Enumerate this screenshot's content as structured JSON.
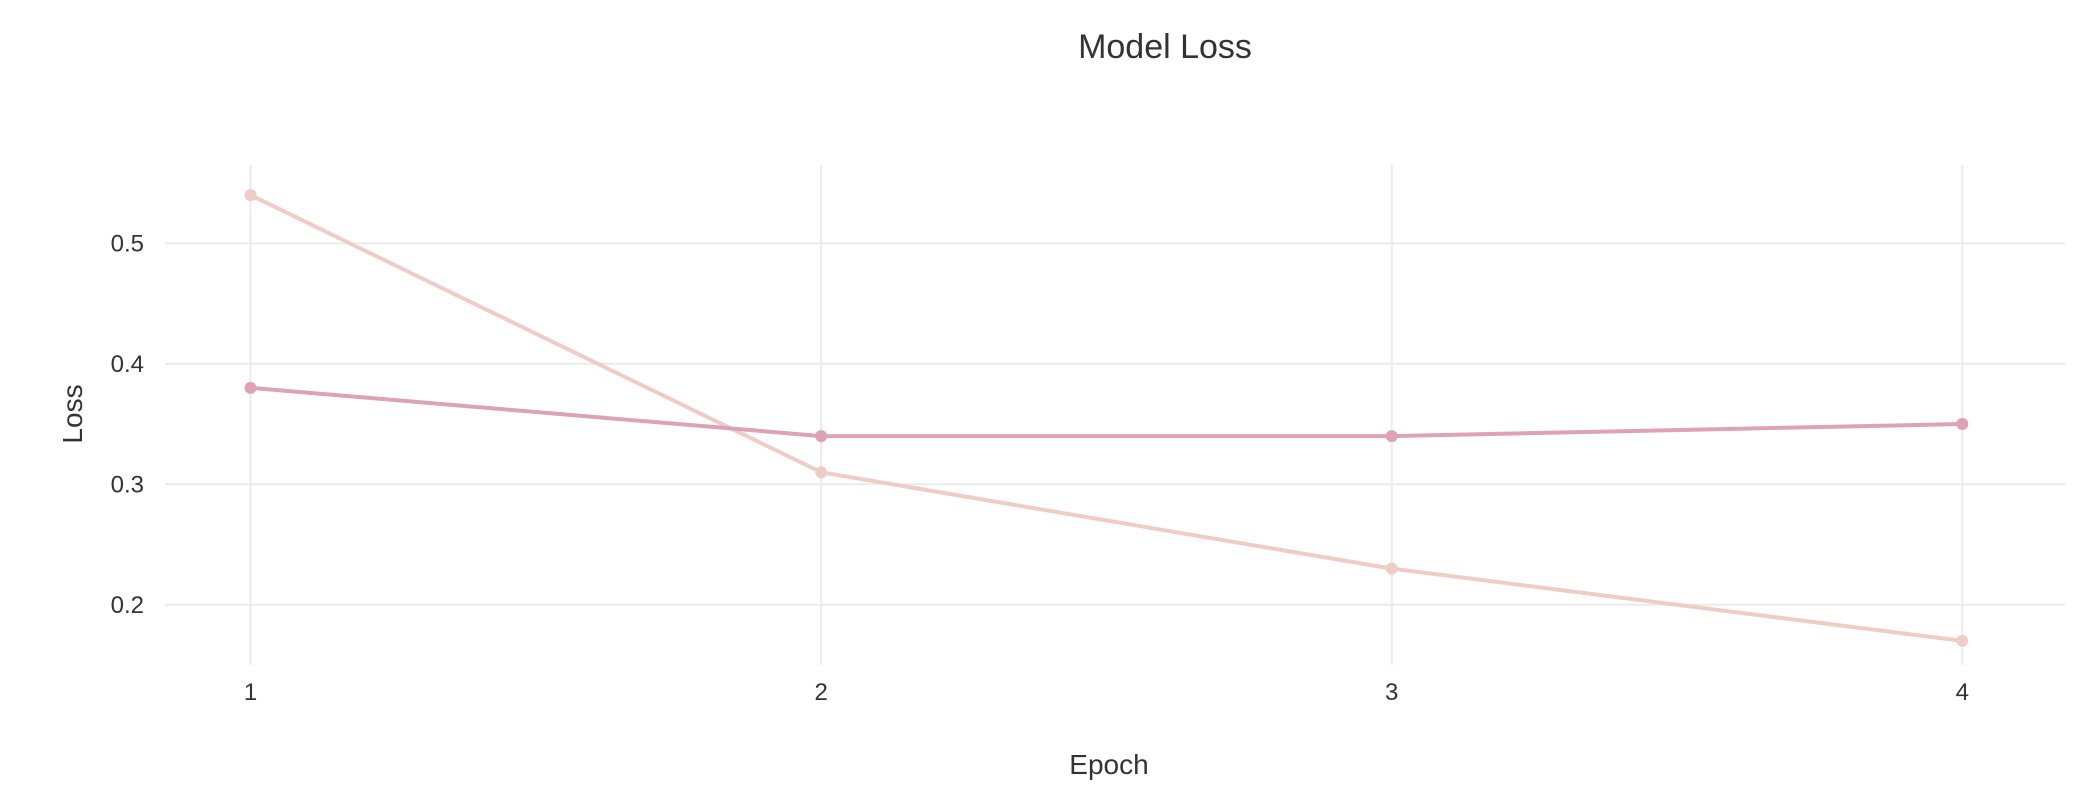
{
  "chart_data": {
    "type": "line",
    "title": "Model Loss",
    "xlabel": "Epoch",
    "ylabel": "Loss",
    "x": [
      1,
      2,
      3,
      4
    ],
    "xticks": [
      "1",
      "2",
      "3",
      "4"
    ],
    "yticks": [
      0.2,
      0.3,
      0.4,
      0.5
    ],
    "xlim": [
      0.85,
      4.18
    ],
    "ylim": [
      0.15,
      0.565
    ],
    "grid": true,
    "legend": "none",
    "series": [
      {
        "values": [
          0.54,
          0.31,
          0.23,
          0.17
        ],
        "color": "#efcdc6"
      },
      {
        "values": [
          0.38,
          0.34,
          0.34,
          0.35
        ],
        "color": "#dda2b5"
      }
    ],
    "colors": {
      "grid": "#ebebeb",
      "text": "#333333"
    }
  }
}
